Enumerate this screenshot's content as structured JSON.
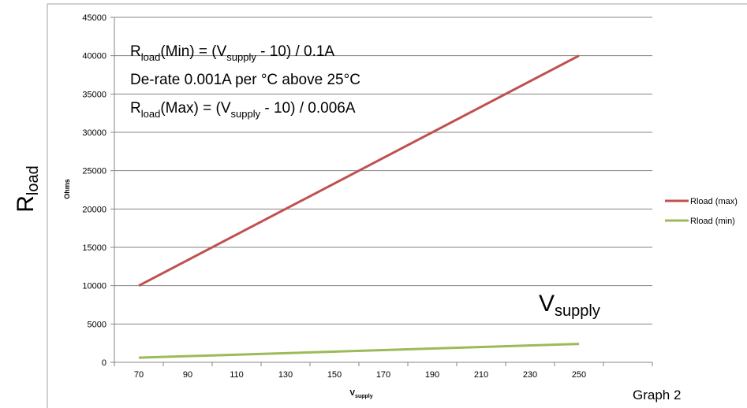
{
  "chart_data": {
    "type": "line",
    "x": [
      70,
      250
    ],
    "categories": [
      "70",
      "90",
      "110",
      "130",
      "150",
      "170",
      "190",
      "210",
      "230",
      "250"
    ],
    "series": [
      {
        "name": "Rload (max)",
        "color": "#c0504d",
        "values": [
          10000,
          40000
        ]
      },
      {
        "name": "Rload (min)",
        "color": "#9bbb59",
        "values": [
          600,
          2400
        ]
      }
    ],
    "yticks": [
      "0",
      "5000",
      "10000",
      "15000",
      "20000",
      "25000",
      "30000",
      "35000",
      "40000",
      "45000"
    ],
    "ylim": [
      0,
      45000
    ],
    "grid": true,
    "legend": "right",
    "ylabel": "Ohms",
    "xlabel": {
      "main": "V",
      "sub": "supply"
    },
    "side_label": {
      "main": "R",
      "sub": "load"
    },
    "vsupply_label": {
      "main": "V",
      "sub": "supply"
    },
    "graph_label": "Graph 2",
    "annotations": {
      "line1": {
        "r": "R",
        "r_sub": "load",
        "a": "(Min) = (V",
        "v_sub": "supply",
        "b": " - 10) / 0.1A"
      },
      "line2": "De-rate 0.001A per °C above 25°C",
      "line3": {
        "r": "R",
        "r_sub": "load",
        "a": "(Max) = (V",
        "v_sub": "supply",
        "b": " - 10) / 0.006A"
      }
    }
  }
}
